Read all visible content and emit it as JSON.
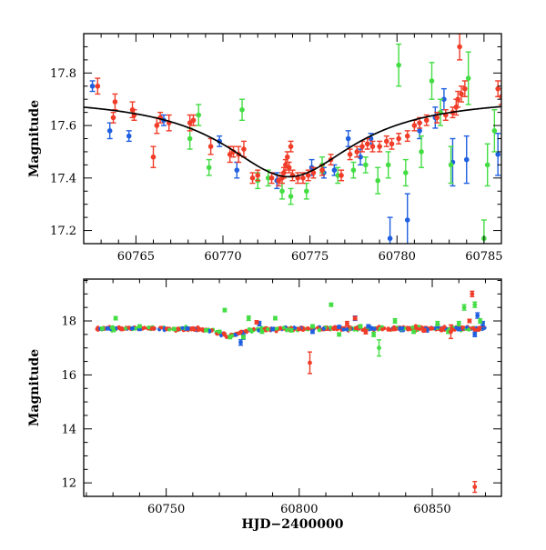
{
  "chart_data": [
    {
      "type": "scatter",
      "subtype": "light-curve-with-model",
      "title": "",
      "xlabel": "",
      "ylabel": "Magnitude",
      "xlim": [
        60762.0,
        60786.0
      ],
      "ylim": [
        17.95,
        17.15
      ],
      "y_inverted": true,
      "x_ticks": [
        60765,
        60770,
        60775,
        60780,
        60785
      ],
      "x_tick_labels": [
        "60765",
        "60770",
        "60775",
        "60780",
        "60785"
      ],
      "y_ticks": [
        17.2,
        17.4,
        17.6,
        17.8
      ],
      "y_tick_labels": [
        "17.2",
        "17.4",
        "17.6",
        "17.8"
      ],
      "grid": false,
      "legend": "none",
      "model_curve": {
        "color": "#000000",
        "baseline": 17.71,
        "peak": 17.405,
        "t0": 60773.8,
        "tE": 4.6,
        "description": "Paczynski-like microlensing fit"
      },
      "series": [
        {
          "color": "#1f5fe0",
          "points": [
            [
              60762.5,
              17.75,
              0.02
            ],
            [
              60763.5,
              17.58,
              0.03
            ],
            [
              60764.6,
              17.56,
              0.02
            ],
            [
              60766.6,
              17.62,
              0.02
            ],
            [
              60769.8,
              17.54,
              0.02
            ],
            [
              60770.8,
              17.43,
              0.03
            ],
            [
              60773.1,
              17.39,
              0.03
            ],
            [
              60775.1,
              17.44,
              0.03
            ],
            [
              60775.8,
              17.42,
              0.02
            ],
            [
              60776.4,
              17.43,
              0.02
            ],
            [
              60777.2,
              17.55,
              0.03
            ],
            [
              60777.9,
              17.48,
              0.03
            ],
            [
              60778.5,
              17.55,
              0.02
            ],
            [
              60779.6,
              17.17,
              0.08
            ],
            [
              60780.6,
              17.24,
              0.1
            ],
            [
              60781.3,
              17.58,
              0.03
            ],
            [
              60782.2,
              17.63,
              0.04
            ],
            [
              60782.7,
              17.7,
              0.04
            ],
            [
              60783.2,
              17.46,
              0.09
            ],
            [
              60784.0,
              17.47,
              0.09
            ],
            [
              60785.8,
              17.49,
              0.08
            ]
          ]
        },
        {
          "color": "#44dd44",
          "points": [
            [
              60768.1,
              17.55,
              0.04
            ],
            [
              60768.6,
              17.64,
              0.04
            ],
            [
              60769.2,
              17.44,
              0.03
            ],
            [
              60771.1,
              17.66,
              0.04
            ],
            [
              60772.0,
              17.39,
              0.03
            ],
            [
              60772.6,
              17.4,
              0.03
            ],
            [
              60773.4,
              17.35,
              0.03
            ],
            [
              60773.9,
              17.33,
              0.03
            ],
            [
              60774.8,
              17.35,
              0.03
            ],
            [
              60775.7,
              17.45,
              0.03
            ],
            [
              60776.6,
              17.41,
              0.03
            ],
            [
              60777.5,
              17.43,
              0.03
            ],
            [
              60778.2,
              17.45,
              0.03
            ],
            [
              60778.9,
              17.39,
              0.05
            ],
            [
              60779.5,
              17.45,
              0.05
            ],
            [
              60780.1,
              17.83,
              0.08
            ],
            [
              60780.5,
              17.42,
              0.05
            ],
            [
              60781.4,
              17.5,
              0.06
            ],
            [
              60782.0,
              17.77,
              0.07
            ],
            [
              60782.5,
              17.65,
              0.05
            ],
            [
              60783.1,
              17.45,
              0.07
            ],
            [
              60784.1,
              17.78,
              0.1
            ],
            [
              60785.0,
              17.17,
              0.07
            ],
            [
              60785.2,
              17.45,
              0.08
            ],
            [
              60785.6,
              17.58,
              0.08
            ]
          ]
        },
        {
          "color": "#f03c28",
          "points": [
            [
              60762.8,
              17.75,
              0.03
            ],
            [
              60763.7,
              17.63,
              0.02
            ],
            [
              60763.8,
              17.69,
              0.03
            ],
            [
              60764.8,
              17.66,
              0.03
            ],
            [
              60764.9,
              17.64,
              0.02
            ],
            [
              60766.0,
              17.48,
              0.04
            ],
            [
              60766.2,
              17.6,
              0.03
            ],
            [
              60766.4,
              17.63,
              0.02
            ],
            [
              60766.9,
              17.61,
              0.03
            ],
            [
              60768.1,
              17.61,
              0.03
            ],
            [
              60768.3,
              17.62,
              0.02
            ],
            [
              60769.3,
              17.52,
              0.03
            ],
            [
              60770.4,
              17.49,
              0.03
            ],
            [
              60770.6,
              17.5,
              0.02
            ],
            [
              60770.9,
              17.49,
              0.03
            ],
            [
              60771.2,
              17.51,
              0.03
            ],
            [
              60771.7,
              17.4,
              0.02
            ],
            [
              60772.0,
              17.41,
              0.02
            ],
            [
              60772.8,
              17.4,
              0.02
            ],
            [
              60773.2,
              17.39,
              0.02
            ],
            [
              60773.4,
              17.4,
              0.02
            ],
            [
              60773.5,
              17.42,
              0.02
            ],
            [
              60773.6,
              17.45,
              0.02
            ],
            [
              60773.7,
              17.48,
              0.02
            ],
            [
              60773.8,
              17.44,
              0.02
            ],
            [
              60773.9,
              17.52,
              0.02
            ],
            [
              60774.0,
              17.41,
              0.02
            ],
            [
              60774.3,
              17.4,
              0.02
            ],
            [
              60774.6,
              17.4,
              0.02
            ],
            [
              60774.9,
              17.41,
              0.02
            ],
            [
              60775.2,
              17.42,
              0.02
            ],
            [
              60775.7,
              17.43,
              0.02
            ],
            [
              60776.2,
              17.47,
              0.02
            ],
            [
              60776.8,
              17.41,
              0.02
            ],
            [
              60777.3,
              17.49,
              0.02
            ],
            [
              60777.7,
              17.5,
              0.02
            ],
            [
              60778.0,
              17.52,
              0.02
            ],
            [
              60778.3,
              17.53,
              0.02
            ],
            [
              60778.6,
              17.52,
              0.02
            ],
            [
              60779.0,
              17.52,
              0.02
            ],
            [
              60779.4,
              17.54,
              0.02
            ],
            [
              60779.7,
              17.53,
              0.02
            ],
            [
              60780.1,
              17.55,
              0.02
            ],
            [
              60780.6,
              17.56,
              0.02
            ],
            [
              60781.0,
              17.6,
              0.02
            ],
            [
              60781.3,
              17.61,
              0.02
            ],
            [
              60781.7,
              17.62,
              0.02
            ],
            [
              60782.3,
              17.63,
              0.02
            ],
            [
              60782.8,
              17.64,
              0.02
            ],
            [
              60783.2,
              17.65,
              0.02
            ],
            [
              60783.4,
              17.67,
              0.03
            ],
            [
              60783.5,
              17.7,
              0.03
            ],
            [
              60783.7,
              17.72,
              0.03
            ],
            [
              60783.9,
              17.74,
              0.03
            ],
            [
              60783.6,
              17.9,
              0.05
            ],
            [
              60785.8,
              17.74,
              0.03
            ],
            [
              60786.0,
              17.71,
              0.03
            ]
          ]
        }
      ]
    },
    {
      "type": "scatter",
      "subtype": "light-curve",
      "title": "",
      "xlabel": "HJD−2400000",
      "ylabel": "Magnitude",
      "xlim": [
        60719.0,
        60876.0
      ],
      "ylim": [
        19.55,
        11.5
      ],
      "y_inverted": true,
      "x_ticks": [
        60750,
        60800,
        60850
      ],
      "x_tick_labels": [
        "60750",
        "60800",
        "60850"
      ],
      "y_ticks": [
        12,
        14,
        16,
        18
      ],
      "y_tick_labels": [
        "12",
        "14",
        "16",
        "18"
      ],
      "grid": false,
      "legend": "none",
      "baseline_mag": 17.72,
      "baseline_range": [
        60724,
        60870
      ],
      "bump": {
        "t0": 60773.8,
        "peak": 17.45,
        "width": 4.6
      },
      "outliers": [
        {
          "color": "#1f5fe0",
          "points": [
            [
              60728,
              17.72,
              0.05
            ],
            [
              60740,
              17.7,
              0.05
            ],
            [
              60758,
              17.72,
              0.05
            ],
            [
              60778,
              17.2,
              0.1
            ],
            [
              60779,
              17.4,
              0.08
            ],
            [
              60785,
              17.9,
              0.08
            ],
            [
              60790,
              17.7,
              0.06
            ],
            [
              60805,
              17.6,
              0.06
            ],
            [
              60815,
              17.78,
              0.05
            ],
            [
              60821,
              18.1,
              0.08
            ],
            [
              60826,
              17.8,
              0.06
            ],
            [
              60838,
              17.72,
              0.05
            ],
            [
              60848,
              17.65,
              0.06
            ],
            [
              60852,
              17.8,
              0.06
            ],
            [
              60860,
              17.7,
              0.06
            ],
            [
              60866,
              17.5,
              0.08
            ],
            [
              60867,
              18.2,
              0.1
            ],
            [
              60869,
              17.9,
              0.08
            ]
          ]
        },
        {
          "color": "#44dd44",
          "points": [
            [
              60726,
              17.72,
              0.05
            ],
            [
              60731,
              18.1,
              0.06
            ],
            [
              60740,
              17.8,
              0.05
            ],
            [
              60753,
              17.7,
              0.05
            ],
            [
              60765,
              17.65,
              0.05
            ],
            [
              60770,
              17.6,
              0.05
            ],
            [
              60772,
              18.4,
              0.06
            ],
            [
              60774,
              17.4,
              0.06
            ],
            [
              60779,
              17.4,
              0.06
            ],
            [
              60781,
              18.1,
              0.08
            ],
            [
              60786,
              17.6,
              0.06
            ],
            [
              60791,
              18.1,
              0.06
            ],
            [
              60797,
              17.65,
              0.06
            ],
            [
              60805,
              17.8,
              0.06
            ],
            [
              60812,
              18.6,
              0.06
            ],
            [
              60815,
              17.5,
              0.06
            ],
            [
              60823,
              17.8,
              0.06
            ],
            [
              60828,
              17.5,
              0.08
            ],
            [
              60830,
              17.0,
              0.3
            ],
            [
              60836,
              18.0,
              0.08
            ],
            [
              60843,
              17.6,
              0.06
            ],
            [
              60852,
              17.9,
              0.08
            ],
            [
              60856,
              17.6,
              0.06
            ],
            [
              60860,
              17.9,
              0.08
            ],
            [
              60862,
              18.5,
              0.1
            ],
            [
              60866,
              18.6,
              0.1
            ],
            [
              60868,
              18.0,
              0.08
            ]
          ]
        },
        {
          "color": "#f03c28",
          "points": [
            [
              60760,
              17.72,
              0.05
            ],
            [
              60784,
              17.95,
              0.06
            ],
            [
              60800,
              17.7,
              0.05
            ],
            [
              60804,
              16.45,
              0.4
            ],
            [
              60818,
              17.9,
              0.08
            ],
            [
              60821,
              18.1,
              0.06
            ],
            [
              60825,
              17.6,
              0.08
            ],
            [
              60836,
              17.7,
              0.05
            ],
            [
              60847,
              17.65,
              0.06
            ],
            [
              60857,
              17.6,
              0.25
            ],
            [
              60864,
              18.0,
              0.06
            ],
            [
              60865,
              19.0,
              0.1
            ],
            [
              60866,
              11.85,
              0.2
            ]
          ]
        }
      ]
    }
  ]
}
